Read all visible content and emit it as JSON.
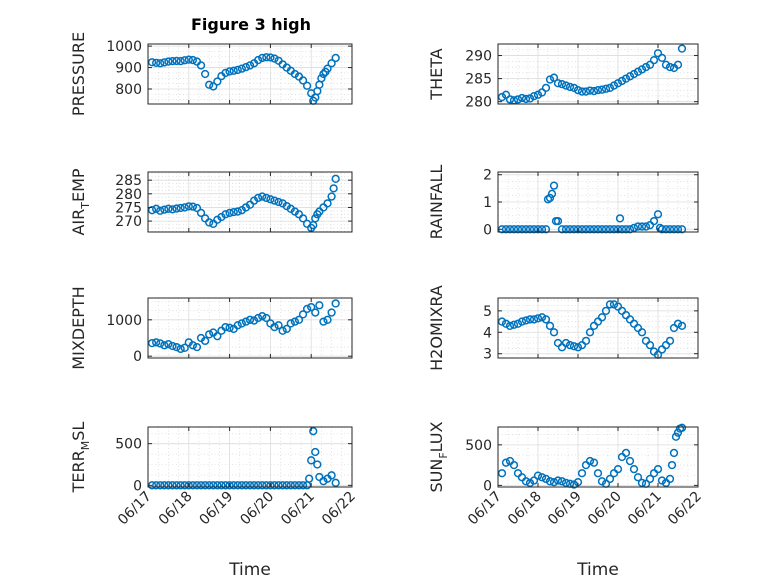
{
  "figure": {
    "title": "Figure 3 high"
  },
  "chart_data": [
    {
      "type": "scatter",
      "panel": "top-left",
      "title": "Figure 3 high",
      "xlabel": "",
      "ylabel": "PRESSURE",
      "xlim": [
        0,
        5
      ],
      "ylim": [
        730,
        1010
      ],
      "yticks": [
        800,
        900,
        1000
      ],
      "xtick_labels": [
        "06/17",
        "06/18",
        "06/19",
        "06/20",
        "06/21",
        "06/22"
      ],
      "show_xtick_labels": false,
      "grid": true,
      "minor_grid": true,
      "series": [
        {
          "x": [
            0.1,
            0.2,
            0.3,
            0.4,
            0.5,
            0.6,
            0.7,
            0.8,
            0.9,
            1.0,
            1.1,
            1.2,
            1.3,
            1.4,
            1.5,
            1.6,
            1.7,
            1.8,
            1.9,
            2.0,
            2.1,
            2.2,
            2.3,
            2.4,
            2.5,
            2.6,
            2.7,
            2.8,
            2.9,
            3.0,
            3.1,
            3.2,
            3.3,
            3.4,
            3.5,
            3.6,
            3.7,
            3.8,
            3.9,
            4.0,
            4.05,
            4.1,
            4.15,
            4.2,
            4.25,
            4.3,
            4.35,
            4.4,
            4.5,
            4.6
          ],
          "y": [
            925,
            922,
            920,
            924,
            928,
            930,
            931,
            930,
            934,
            937,
            935,
            928,
            910,
            870,
            820,
            812,
            835,
            860,
            875,
            882,
            885,
            889,
            895,
            902,
            910,
            920,
            935,
            945,
            948,
            947,
            942,
            932,
            915,
            900,
            885,
            870,
            858,
            840,
            815,
            780,
            745,
            760,
            790,
            820,
            850,
            870,
            880,
            895,
            920,
            945
          ]
        }
      ]
    },
    {
      "type": "scatter",
      "panel": "top-right",
      "title": "",
      "xlabel": "",
      "ylabel": "THETA",
      "xlim": [
        0,
        5
      ],
      "ylim": [
        279.5,
        292.5
      ],
      "yticks": [
        280,
        285,
        290
      ],
      "xtick_labels": [
        "06/17",
        "06/18",
        "06/19",
        "06/20",
        "06/21",
        "06/22"
      ],
      "show_xtick_labels": false,
      "grid": true,
      "minor_grid": true,
      "series": [
        {
          "x": [
            0.1,
            0.2,
            0.3,
            0.4,
            0.5,
            0.6,
            0.7,
            0.8,
            0.9,
            1.0,
            1.1,
            1.2,
            1.3,
            1.4,
            1.5,
            1.6,
            1.7,
            1.8,
            1.9,
            2.0,
            2.1,
            2.2,
            2.3,
            2.4,
            2.5,
            2.6,
            2.7,
            2.8,
            2.9,
            3.0,
            3.1,
            3.2,
            3.3,
            3.4,
            3.5,
            3.6,
            3.7,
            3.8,
            3.9,
            4.0,
            4.1,
            4.2,
            4.3,
            4.4,
            4.5,
            4.6
          ],
          "y": [
            281,
            281.5,
            280.5,
            280.3,
            280.5,
            280.8,
            280.6,
            280.7,
            281.2,
            281.5,
            282,
            283,
            284.8,
            285.2,
            284,
            283.8,
            283.5,
            283.2,
            283,
            282.5,
            282.2,
            282.2,
            282.4,
            282.3,
            282.5,
            282.6,
            282.8,
            283,
            283.5,
            284,
            284.5,
            285,
            285.5,
            286,
            286.5,
            287,
            287.5,
            288,
            289,
            290.5,
            289.5,
            288,
            287.5,
            287.3,
            288,
            291.5
          ]
        }
      ]
    },
    {
      "type": "scatter",
      "panel": "row2-left",
      "title": "",
      "xlabel": "",
      "ylabel": "AIR_TEMP",
      "xlim": [
        0,
        5
      ],
      "ylim": [
        266,
        288
      ],
      "yticks": [
        270,
        275,
        280,
        285
      ],
      "xtick_labels": [
        "06/17",
        "06/18",
        "06/19",
        "06/20",
        "06/21",
        "06/22"
      ],
      "show_xtick_labels": false,
      "grid": true,
      "minor_grid": true,
      "series": [
        {
          "x": [
            0.1,
            0.2,
            0.3,
            0.4,
            0.5,
            0.6,
            0.7,
            0.8,
            0.9,
            1.0,
            1.1,
            1.2,
            1.3,
            1.4,
            1.5,
            1.6,
            1.7,
            1.8,
            1.9,
            2.0,
            2.1,
            2.2,
            2.3,
            2.4,
            2.5,
            2.6,
            2.7,
            2.8,
            2.9,
            3.0,
            3.1,
            3.2,
            3.3,
            3.4,
            3.5,
            3.6,
            3.7,
            3.8,
            3.9,
            4.0,
            4.05,
            4.1,
            4.15,
            4.2,
            4.3,
            4.4,
            4.5,
            4.55,
            4.6
          ],
          "y": [
            274,
            274.5,
            273.8,
            274.2,
            274.5,
            274.3,
            274.6,
            274.8,
            275,
            275.4,
            275.3,
            274.8,
            273,
            271,
            269.5,
            269,
            270.5,
            271.5,
            272.5,
            273,
            273.3,
            273.5,
            274,
            275,
            276,
            277.5,
            278.5,
            279,
            278.5,
            278,
            277.5,
            277,
            276.5,
            275.5,
            274.5,
            273.5,
            272.5,
            271,
            269,
            267.5,
            268.5,
            271,
            272.5,
            273.5,
            275,
            276.5,
            279,
            282,
            285.5
          ]
        }
      ]
    },
    {
      "type": "scatter",
      "panel": "row2-right",
      "title": "",
      "xlabel": "",
      "ylabel": "RAINFALL",
      "xlim": [
        0,
        5
      ],
      "ylim": [
        -0.1,
        2.1
      ],
      "yticks": [
        0,
        1,
        2
      ],
      "xtick_labels": [
        "06/17",
        "06/18",
        "06/19",
        "06/20",
        "06/21",
        "06/22"
      ],
      "show_xtick_labels": false,
      "grid": true,
      "minor_grid": true,
      "series": [
        {
          "x": [
            0.1,
            0.2,
            0.3,
            0.4,
            0.5,
            0.6,
            0.7,
            0.8,
            0.9,
            1.0,
            1.1,
            1.2,
            1.25,
            1.3,
            1.35,
            1.4,
            1.45,
            1.5,
            1.6,
            1.7,
            1.8,
            1.9,
            2.0,
            2.1,
            2.2,
            2.3,
            2.4,
            2.5,
            2.6,
            2.7,
            2.8,
            2.9,
            3.0,
            3.05,
            3.1,
            3.2,
            3.3,
            3.4,
            3.5,
            3.6,
            3.7,
            3.8,
            3.9,
            4.0,
            4.05,
            4.1,
            4.2,
            4.3,
            4.4,
            4.5,
            4.6
          ],
          "y": [
            0,
            0,
            0,
            0,
            0,
            0,
            0,
            0,
            0,
            0,
            0,
            0,
            1.1,
            1.15,
            1.3,
            1.6,
            0.3,
            0.3,
            0,
            0,
            0,
            0,
            0,
            0,
            0,
            0,
            0,
            0,
            0,
            0,
            0,
            0,
            0,
            0.4,
            0,
            0,
            0,
            0.05,
            0.1,
            0.1,
            0.1,
            0.15,
            0.3,
            0.55,
            0.05,
            0,
            0,
            0,
            0,
            0,
            0
          ]
        }
      ]
    },
    {
      "type": "scatter",
      "panel": "row3-left",
      "title": "",
      "xlabel": "",
      "ylabel": "MIXDEPTH",
      "xlim": [
        0,
        5
      ],
      "ylim": [
        -50,
        1600
      ],
      "yticks": [
        0,
        1000
      ],
      "xtick_labels": [
        "06/17",
        "06/18",
        "06/19",
        "06/20",
        "06/21",
        "06/22"
      ],
      "show_xtick_labels": false,
      "grid": true,
      "minor_grid": true,
      "series": [
        {
          "x": [
            0.1,
            0.2,
            0.3,
            0.4,
            0.5,
            0.6,
            0.7,
            0.8,
            0.9,
            1.0,
            1.1,
            1.2,
            1.3,
            1.4,
            1.5,
            1.6,
            1.7,
            1.8,
            1.9,
            2.0,
            2.1,
            2.2,
            2.3,
            2.4,
            2.5,
            2.6,
            2.7,
            2.8,
            2.9,
            3.0,
            3.1,
            3.2,
            3.3,
            3.4,
            3.5,
            3.6,
            3.7,
            3.8,
            3.9,
            4.0,
            4.1,
            4.2,
            4.3,
            4.4,
            4.5,
            4.6
          ],
          "y": [
            360,
            380,
            350,
            300,
            330,
            280,
            250,
            200,
            230,
            380,
            300,
            250,
            500,
            420,
            600,
            650,
            550,
            700,
            800,
            780,
            750,
            850,
            900,
            950,
            1000,
            980,
            1050,
            1100,
            1050,
            900,
            800,
            850,
            700,
            750,
            900,
            950,
            1000,
            1150,
            1300,
            1350,
            1200,
            1400,
            950,
            1000,
            1200,
            1450
          ]
        }
      ]
    },
    {
      "type": "scatter",
      "panel": "row3-right",
      "title": "",
      "xlabel": "",
      "ylabel": "H2OMIXRA",
      "xlim": [
        0,
        5
      ],
      "ylim": [
        2.8,
        5.6
      ],
      "yticks": [
        3,
        4,
        5
      ],
      "xtick_labels": [
        "06/17",
        "06/18",
        "06/19",
        "06/20",
        "06/21",
        "06/22"
      ],
      "show_xtick_labels": false,
      "grid": true,
      "minor_grid": true,
      "series": [
        {
          "x": [
            0.1,
            0.2,
            0.3,
            0.4,
            0.5,
            0.6,
            0.7,
            0.8,
            0.9,
            1.0,
            1.1,
            1.2,
            1.3,
            1.4,
            1.5,
            1.6,
            1.7,
            1.8,
            1.9,
            2.0,
            2.1,
            2.2,
            2.3,
            2.4,
            2.5,
            2.6,
            2.7,
            2.8,
            2.9,
            3.0,
            3.1,
            3.2,
            3.3,
            3.4,
            3.5,
            3.6,
            3.7,
            3.8,
            3.9,
            4.0,
            4.1,
            4.2,
            4.3,
            4.4,
            4.5,
            4.6
          ],
          "y": [
            4.5,
            4.4,
            4.3,
            4.35,
            4.4,
            4.5,
            4.55,
            4.6,
            4.6,
            4.65,
            4.7,
            4.6,
            4.3,
            4.0,
            3.5,
            3.3,
            3.5,
            3.4,
            3.35,
            3.3,
            3.4,
            3.6,
            4.0,
            4.3,
            4.5,
            4.7,
            5.0,
            5.3,
            5.3,
            5.2,
            5.0,
            4.8,
            4.6,
            4.4,
            4.2,
            4.0,
            3.6,
            3.4,
            3.1,
            2.95,
            3.2,
            3.4,
            3.6,
            4.2,
            4.4,
            4.3
          ]
        }
      ]
    },
    {
      "type": "scatter",
      "panel": "bottom-left",
      "title": "",
      "xlabel": "Time",
      "ylabel": "TERR_MSL",
      "xlim": [
        0,
        5
      ],
      "ylim": [
        -20,
        700
      ],
      "yticks": [
        0,
        500
      ],
      "xtick_labels": [
        "06/17",
        "06/18",
        "06/19",
        "06/20",
        "06/21",
        "06/22"
      ],
      "show_xtick_labels": true,
      "grid": true,
      "minor_grid": true,
      "series": [
        {
          "x": [
            0.1,
            0.2,
            0.3,
            0.4,
            0.5,
            0.6,
            0.7,
            0.8,
            0.9,
            1.0,
            1.1,
            1.2,
            1.3,
            1.4,
            1.5,
            1.6,
            1.7,
            1.8,
            1.9,
            2.0,
            2.1,
            2.2,
            2.3,
            2.4,
            2.5,
            2.6,
            2.7,
            2.8,
            2.9,
            3.0,
            3.1,
            3.2,
            3.3,
            3.4,
            3.5,
            3.6,
            3.7,
            3.8,
            3.9,
            3.95,
            4.0,
            4.05,
            4.1,
            4.15,
            4.2,
            4.3,
            4.4,
            4.5,
            4.6
          ],
          "y": [
            0,
            0,
            0,
            0,
            0,
            0,
            0,
            0,
            0,
            0,
            0,
            0,
            0,
            0,
            0,
            0,
            0,
            0,
            0,
            0,
            0,
            0,
            0,
            0,
            0,
            0,
            0,
            0,
            0,
            0,
            0,
            0,
            0,
            0,
            0,
            0,
            0,
            0,
            0,
            80,
            300,
            650,
            400,
            250,
            100,
            50,
            80,
            120,
            30
          ]
        }
      ]
    },
    {
      "type": "scatter",
      "panel": "bottom-right",
      "title": "",
      "xlabel": "Time",
      "ylabel": "SUN_FLUX",
      "xlim": [
        0,
        5
      ],
      "ylim": [
        -20,
        720
      ],
      "yticks": [
        0,
        500
      ],
      "xtick_labels": [
        "06/17",
        "06/18",
        "06/19",
        "06/20",
        "06/21",
        "06/22"
      ],
      "show_xtick_labels": true,
      "grid": true,
      "minor_grid": true,
      "series": [
        {
          "x": [
            0.1,
            0.2,
            0.3,
            0.4,
            0.5,
            0.6,
            0.7,
            0.8,
            0.9,
            1.0,
            1.1,
            1.2,
            1.3,
            1.4,
            1.5,
            1.6,
            1.7,
            1.8,
            1.9,
            2.0,
            2.1,
            2.2,
            2.3,
            2.4,
            2.5,
            2.6,
            2.7,
            2.8,
            2.9,
            3.0,
            3.1,
            3.2,
            3.3,
            3.4,
            3.5,
            3.6,
            3.7,
            3.8,
            3.9,
            4.0,
            4.1,
            4.2,
            4.3,
            4.35,
            4.4,
            4.45,
            4.5,
            4.55,
            4.6
          ],
          "y": [
            150,
            280,
            300,
            250,
            150,
            100,
            50,
            30,
            60,
            120,
            100,
            80,
            50,
            40,
            60,
            50,
            30,
            20,
            10,
            40,
            150,
            250,
            300,
            280,
            150,
            50,
            20,
            80,
            150,
            200,
            350,
            400,
            300,
            200,
            100,
            30,
            20,
            80,
            150,
            200,
            60,
            30,
            80,
            250,
            400,
            600,
            650,
            700,
            710
          ]
        }
      ]
    }
  ]
}
